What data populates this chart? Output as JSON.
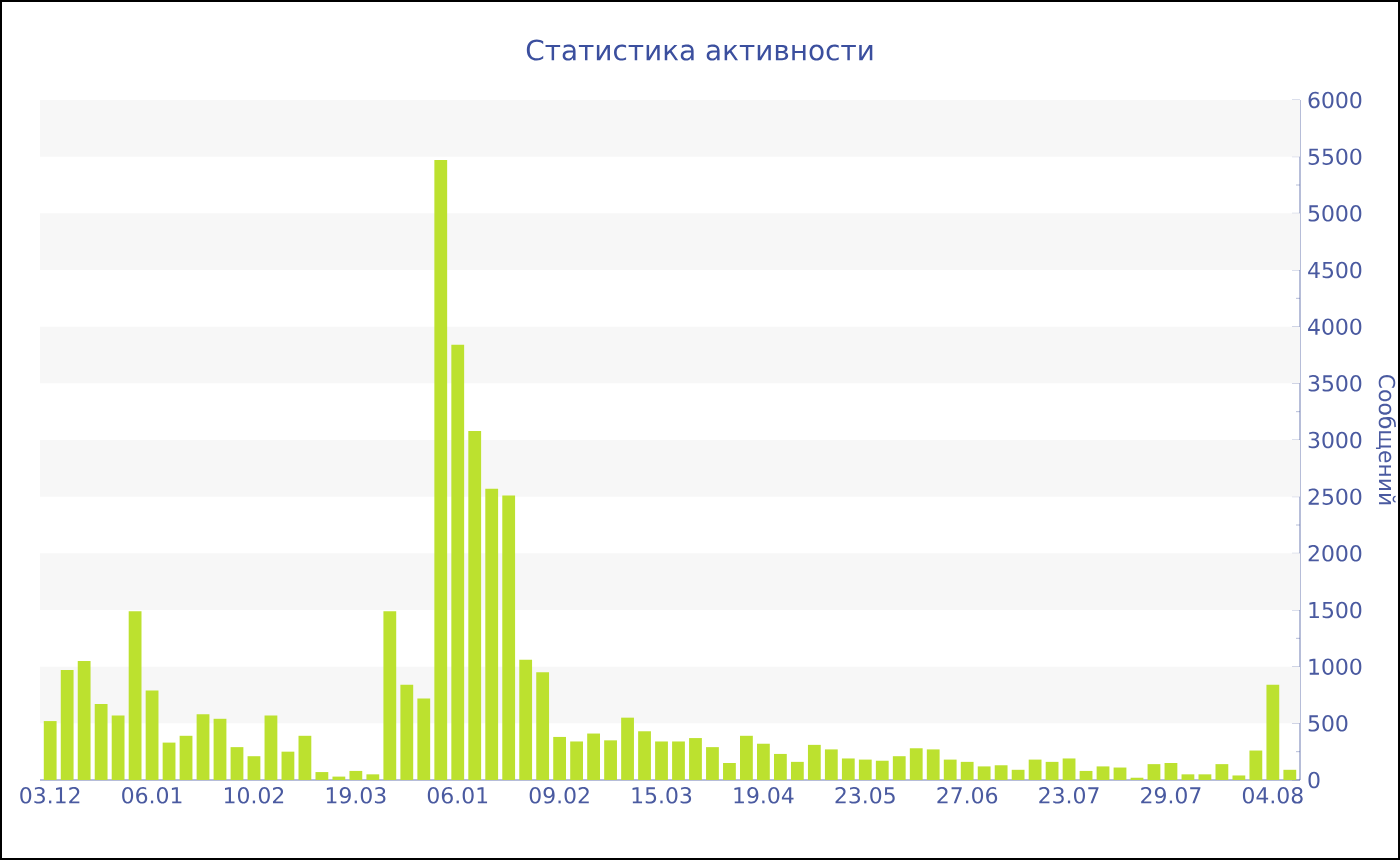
{
  "chart_data": {
    "type": "bar",
    "title": "Статистика активности",
    "ylabel": "Сообщений",
    "categories": [
      "03.12",
      null,
      null,
      null,
      null,
      null,
      "06.01",
      null,
      null,
      null,
      null,
      null,
      "10.02",
      null,
      null,
      null,
      null,
      null,
      "19.03",
      null,
      null,
      null,
      null,
      null,
      "06.01",
      null,
      null,
      null,
      null,
      null,
      "09.02",
      null,
      null,
      null,
      null,
      null,
      "15.03",
      null,
      null,
      null,
      null,
      null,
      "19.04",
      null,
      null,
      null,
      null,
      null,
      "23.05",
      null,
      null,
      null,
      null,
      null,
      "27.06",
      null,
      null,
      null,
      null,
      null,
      "23.07",
      null,
      null,
      null,
      null,
      null,
      "29.07",
      null,
      null,
      null,
      null,
      null,
      "04.08",
      null
    ],
    "values": [
      520,
      970,
      1050,
      670,
      570,
      1490,
      790,
      330,
      390,
      580,
      540,
      290,
      210,
      570,
      250,
      390,
      70,
      30,
      80,
      50,
      1490,
      840,
      720,
      5470,
      3840,
      3080,
      2570,
      2510,
      1060,
      950,
      380,
      340,
      410,
      350,
      550,
      430,
      340,
      340,
      370,
      290,
      150,
      390,
      320,
      230,
      160,
      310,
      270,
      190,
      180,
      170,
      210,
      280,
      270,
      180,
      160,
      120,
      130,
      90,
      180,
      160,
      190,
      80,
      120,
      110,
      20,
      140,
      150,
      50,
      50,
      140,
      40,
      260,
      840,
      90
    ],
    "color": "#bce12f",
    "ylim": [
      0,
      6000
    ],
    "yticks": [
      0,
      500,
      1000,
      1500,
      2000,
      2500,
      3000,
      3500,
      4000,
      4500,
      5000,
      5500,
      6000
    ],
    "bands": [
      {
        "axis": "y",
        "from": 500,
        "to": 1000,
        "color": "#f7f7f7"
      },
      {
        "axis": "y",
        "from": 1500,
        "to": 2000,
        "color": "#f7f7f7"
      },
      {
        "axis": "y",
        "from": 2500,
        "to": 3000,
        "color": "#f7f7f7"
      },
      {
        "axis": "y",
        "from": 3500,
        "to": 4000,
        "color": "#f7f7f7"
      },
      {
        "axis": "y",
        "from": 4500,
        "to": 5000,
        "color": "#f7f7f7"
      },
      {
        "axis": "y",
        "from": 5500,
        "to": 6000,
        "color": "#f7f7f7"
      }
    ]
  }
}
